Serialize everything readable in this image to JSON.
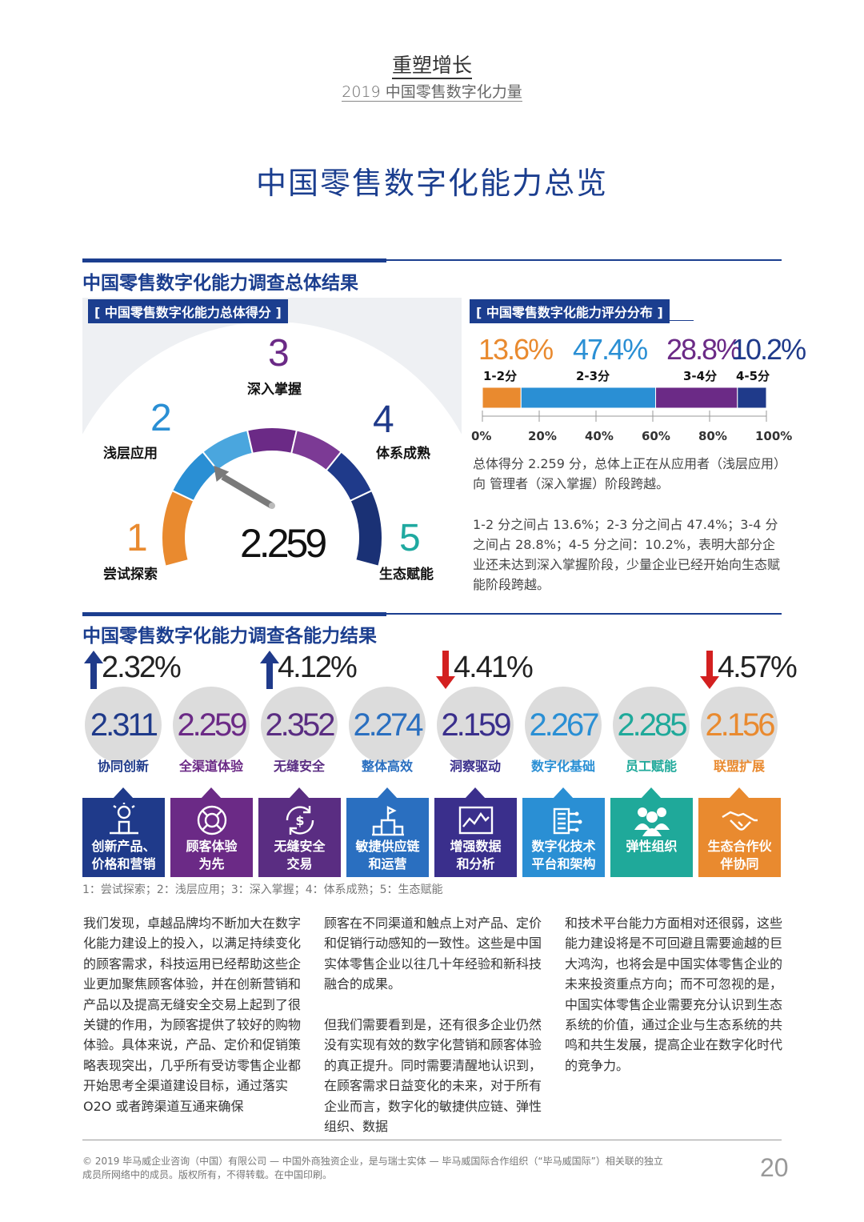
{
  "header": {
    "title": "重塑增长",
    "subtitle": "2019 中国零售数字化力量"
  },
  "main_title": "中国零售数字化能力总览",
  "section1": {
    "heading": "中国零售数字化能力调查总体结果",
    "gauge_panel_label": "[ 中国零售数字化能力总体得分 ]",
    "gauge": {
      "levels": [
        {
          "num": "1",
          "label": "尝试探索",
          "color": "#e98a2f"
        },
        {
          "num": "2",
          "label": "浅层应用",
          "color": "#2a8fd4"
        },
        {
          "num": "3",
          "label": "深入掌握",
          "color": "#6b2a86"
        },
        {
          "num": "4",
          "label": "体系成熟",
          "color": "#1f3a8a"
        },
        {
          "num": "5",
          "label": "生态赋能",
          "color": "#1fa9a0"
        }
      ],
      "score": "2.259",
      "score_value": 2.259
    },
    "dist_panel_label": "[ 中国零售数字化能力评分分布 ]",
    "distribution": {
      "segments": [
        {
          "pct": "13.6%",
          "range": "1-2分",
          "value": 13.6,
          "color": "#e98a2f"
        },
        {
          "pct": "47.4%",
          "range": "2-3分",
          "value": 47.4,
          "color": "#2a8fd4"
        },
        {
          "pct": "28.8%",
          "range": "3-4分",
          "value": 28.8,
          "color": "#6b2a86"
        },
        {
          "pct": "10.2%",
          "range": "4-5分",
          "value": 10.2,
          "color": "#1f3a8a"
        }
      ],
      "ticks": [
        "0%",
        "20%",
        "40%",
        "60%",
        "80%",
        "100%"
      ]
    },
    "para1": "总体得分 2.259 分，总体上正在从应用者（浅层应用）向 管理者（深入掌握）阶段跨越。",
    "para2": "1-2 分之间占 13.6%；2-3 分之间占 47.4%；3-4 分之间占 28.8%；4-5 分之间：10.2%，表明大部分企业还未达到深入掌握阶段，少量企业已经开始向生态赋能阶段跨越。"
  },
  "section2": {
    "heading": "中国零售数字化能力调查各能力结果",
    "capabilities": [
      {
        "delta": "2.32%",
        "dir": "up",
        "score": "2.311",
        "name": "协同创新",
        "color": "#1f3a8a",
        "card_line1": "创新产品、",
        "card_line2": "价格和营销",
        "icon": "innovation-icon"
      },
      {
        "delta": "",
        "dir": "",
        "score": "2.259",
        "name": "全渠道体验",
        "color": "#6b2a86",
        "card_line1": "顾客体验",
        "card_line2": "为先",
        "icon": "lifebuoy-icon"
      },
      {
        "delta": "4.12%",
        "dir": "up",
        "score": "2.352",
        "name": "无缝安全",
        "color": "#5a2d82",
        "card_line1": "无缝安全",
        "card_line2": "交易",
        "icon": "dollar-cycle-icon"
      },
      {
        "delta": "",
        "dir": "",
        "score": "2.274",
        "name": "整体高效",
        "color": "#2a6fc0",
        "card_line1": "敏捷供应链",
        "card_line2": "和运营",
        "icon": "podium-icon"
      },
      {
        "delta": "4.41%",
        "dir": "down",
        "score": "2.159",
        "name": "洞察驱动",
        "color": "#3a2f8c",
        "card_line1": "增强数据",
        "card_line2": "和分析",
        "icon": "analytics-icon"
      },
      {
        "delta": "",
        "dir": "",
        "score": "2.267",
        "name": "数字化基础",
        "color": "#2a8fd4",
        "card_line1": "数字化技术",
        "card_line2": "平台和架构",
        "icon": "circuit-icon"
      },
      {
        "delta": "",
        "dir": "",
        "score": "2.285",
        "name": "员工赋能",
        "color": "#1fa99a",
        "card_line1": "弹性组织",
        "card_line2": "",
        "icon": "team-icon"
      },
      {
        "delta": "4.57%",
        "dir": "down",
        "score": "2.156",
        "name": "联盟扩展",
        "color": "#e98a2f",
        "card_line1": "生态合作伙",
        "card_line2": "伴协同",
        "icon": "handshake-icon"
      }
    ],
    "legend": "1：尝试探索；2：浅层应用；3：深入掌握；4：体系成熟；5：生态赋能"
  },
  "body": {
    "col1": "我们发现，卓越品牌均不断加大在数字化能力建设上的投入，以满足持续变化的顾客需求，科技运用已经帮助这些企业更加聚焦顾客体验，并在创新营销和产品以及提高无缝安全交易上起到了很关键的作用，为顾客提供了较好的购物体验。具体来说，产品、定价和促销策略表现突出，几乎所有受访零售企业都开始思考全渠道建设目标，通过落实 O2O 或者跨渠道互通来确保",
    "col2a": "顾客在不同渠道和触点上对产品、定价和促销行动感知的一致性。这些是中国实体零售企业以往几十年经验和新科技融合的成果。",
    "col2b": "但我们需要看到是，还有很多企业仍然没有实现有效的数字化营销和顾客体验的真正提升。同时需要清醒地认识到，在顾客需求日益变化的未来，对于所有企业而言，数字化的敏捷供应链、弹性组织、数据",
    "col3": "和技术平台能力方面相对还很弱，这些能力建设将是不可回避且需要逾越的巨大鸿沟，也将会是中国实体零售企业的未来投资重点方向；而不可忽视的是，中国实体零售企业需要充分认识到生态系统的价值，通过企业与生态系统的共鸣和共生发展，提高企业在数字化时代的竞争力。"
  },
  "footer": {
    "text1": "© 2019 毕马威企业咨询（中国）有限公司 — 中国外商独资企业，是与瑞士实体 — 毕马威国际合作组织（“毕马威国际”）相关联的独立",
    "text2": "成员所网络中的成员。版权所有，不得转载。在中国印刷。",
    "page": "20"
  }
}
